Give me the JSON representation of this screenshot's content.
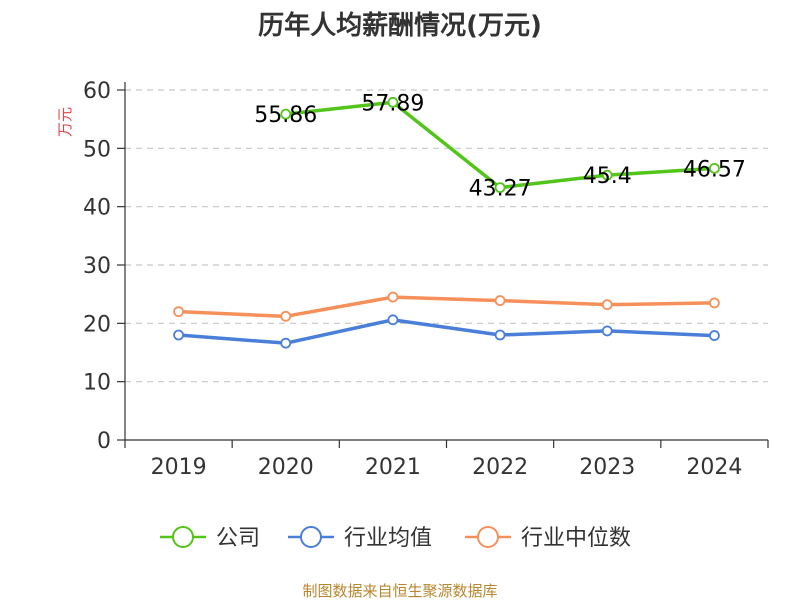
{
  "source_text": "制图数据来自恒生聚源数据库",
  "colors": {
    "company": "#52c41a",
    "industry_avg": "#4a7fd9",
    "industry_median": "#f5905a",
    "axis": "#333333",
    "grid": "#c8c8c8",
    "ylabel": "#e0474c",
    "source": "#b8862e"
  },
  "chart_data": {
    "type": "line",
    "title": "历年人均薪酬情况(万元)",
    "ylabel": "万元",
    "xlabel": "",
    "ylim": [
      0,
      60
    ],
    "yticks": [
      0,
      10,
      20,
      30,
      40,
      50,
      60
    ],
    "grid": true,
    "legend_position": "bottom",
    "categories": [
      "2019",
      "2020",
      "2021",
      "2022",
      "2023",
      "2024"
    ],
    "series": [
      {
        "name": "公司",
        "color_key": "company",
        "values": [
          null,
          55.86,
          57.89,
          43.27,
          45.4,
          46.57
        ],
        "labels": [
          "",
          "55.86",
          "57.89",
          "43.27",
          "45.4",
          "46.57"
        ]
      },
      {
        "name": "行业均值",
        "color_key": "industry_avg",
        "values": [
          18.0,
          16.6,
          20.6,
          18.0,
          18.7,
          17.9
        ]
      },
      {
        "name": "行业中位数",
        "color_key": "industry_median",
        "values": [
          22.0,
          21.2,
          24.5,
          23.9,
          23.2,
          23.5
        ]
      }
    ]
  }
}
